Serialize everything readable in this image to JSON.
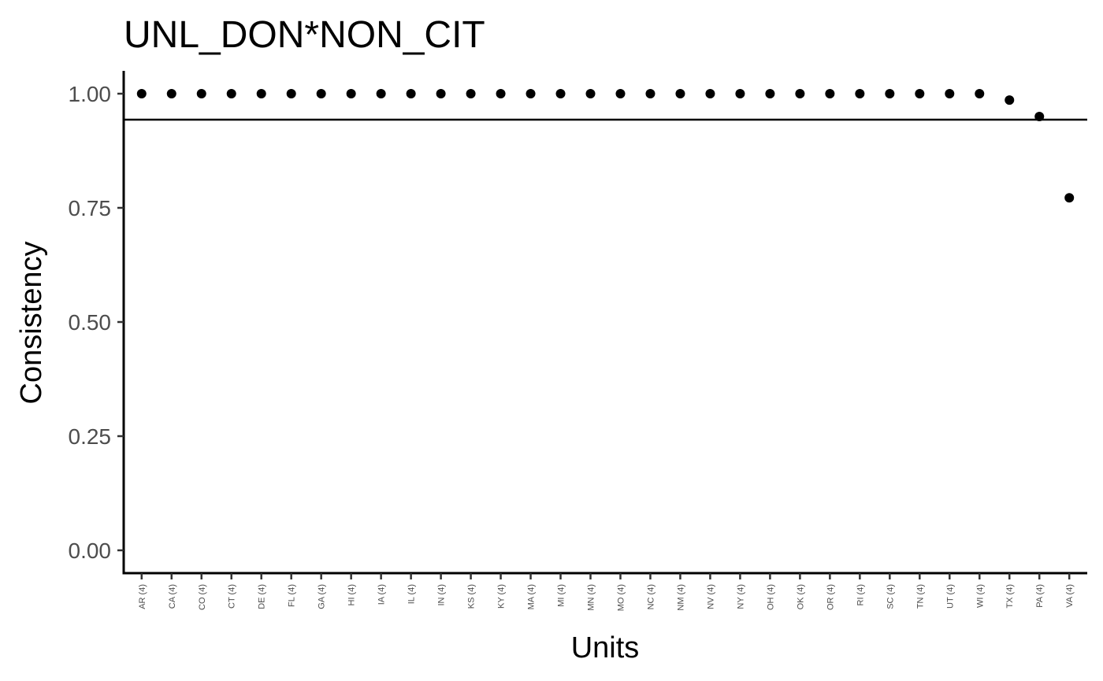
{
  "chart_data": {
    "type": "scatter",
    "title": "UNL_DON*NON_CIT",
    "xlabel": "Units",
    "ylabel": "Consistency",
    "ylim": [
      -0.05,
      1.05
    ],
    "yticks": [
      0.0,
      0.25,
      0.5,
      0.75,
      1.0
    ],
    "ytick_labels": [
      "0.00",
      "0.25",
      "0.50",
      "0.75",
      "1.00"
    ],
    "reference_line": 0.943,
    "grid": false,
    "legend": "none",
    "categories": [
      "AR (4)",
      "CA (4)",
      "CO (4)",
      "CT (4)",
      "DE (4)",
      "FL (4)",
      "GA (4)",
      "HI (4)",
      "IA (4)",
      "IL (4)",
      "IN (4)",
      "KS (4)",
      "KY (4)",
      "MA (4)",
      "MI (4)",
      "MN (4)",
      "MO (4)",
      "NC (4)",
      "NM (4)",
      "NV (4)",
      "NY (4)",
      "OH (4)",
      "OK (4)",
      "OR (4)",
      "RI (4)",
      "SC (4)",
      "TN (4)",
      "UT (4)",
      "WI (4)",
      "TX (4)",
      "PA (4)",
      "VA (4)"
    ],
    "values": [
      1.0,
      1.0,
      1.0,
      1.0,
      1.0,
      1.0,
      1.0,
      1.0,
      1.0,
      1.0,
      1.0,
      1.0,
      1.0,
      1.0,
      1.0,
      1.0,
      1.0,
      1.0,
      1.0,
      1.0,
      1.0,
      1.0,
      1.0,
      1.0,
      1.0,
      1.0,
      1.0,
      1.0,
      1.0,
      0.986,
      0.95,
      0.772
    ]
  }
}
